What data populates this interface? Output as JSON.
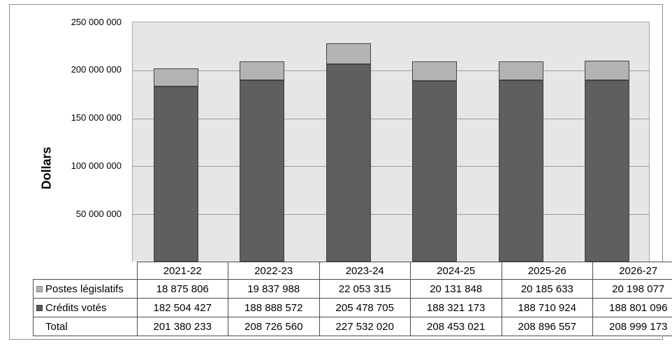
{
  "chart_data": {
    "type": "bar",
    "stacked": true,
    "title": "",
    "ylabel": "Dollars",
    "xlabel": "",
    "ylim": [
      0,
      250000000
    ],
    "grid": true,
    "legend_position": "table-row-headers",
    "categories": [
      "2021-22",
      "2022-23",
      "2023-24",
      "2024-25",
      "2025-26",
      "2026-27"
    ],
    "series": [
      {
        "key": "credits-votes",
        "name": "Crédits votés",
        "color": "#5f5f5f",
        "border": "#404040",
        "values": [
          182504427,
          188888572,
          205478705,
          188321173,
          188710924,
          188801096
        ]
      },
      {
        "key": "postes-legislatifs",
        "name": "Postes législatifs",
        "color": "#b3b3b3",
        "border": "#454545",
        "values": [
          18875806,
          19837988,
          22053315,
          20131848,
          20185633,
          20198077
        ]
      }
    ],
    "totals": [
      201380233,
      208726560,
      227532020,
      208453021,
      208896557,
      208999173
    ],
    "yticks": [
      {
        "value": 50000000,
        "label": "50 000 000"
      },
      {
        "value": 100000000,
        "label": "100 000 000"
      },
      {
        "value": 150000000,
        "label": "150 000 000"
      },
      {
        "value": 200000000,
        "label": "200 000 000"
      },
      {
        "value": 250000000,
        "label": "250 000 000"
      }
    ]
  },
  "table": {
    "columns": [
      "2021-22",
      "2022-23",
      "2023-24",
      "2024-25",
      "2025-26",
      "2026-27"
    ],
    "rows": [
      {
        "label": "Postes législatifs",
        "swatch": "#b3b3b3",
        "swatch_border": "#7f7f7f",
        "values": [
          "18 875 806",
          "19 837 988",
          "22 053 315",
          "20 131 848",
          "20 185 633",
          "20 198 077"
        ]
      },
      {
        "label": "Crédits votés",
        "swatch": "#595959",
        "swatch_border": "#404040",
        "values": [
          "182 504 427",
          "188 888 572",
          "205 478 705",
          "188 321 173",
          "188 710 924",
          "188 801 096"
        ]
      },
      {
        "label": "Total",
        "swatch": null,
        "swatch_border": null,
        "values": [
          "201 380 233",
          "208 726 560",
          "227 532 020",
          "208 453 021",
          "208 896 557",
          "208 999 173"
        ]
      }
    ]
  },
  "colors": {
    "plot_background": "#e6e6e6",
    "gridline": "#9d9d9d",
    "frame_border": "#8e8e8e",
    "table_border": "#4d4d4d",
    "text": "#000000"
  }
}
